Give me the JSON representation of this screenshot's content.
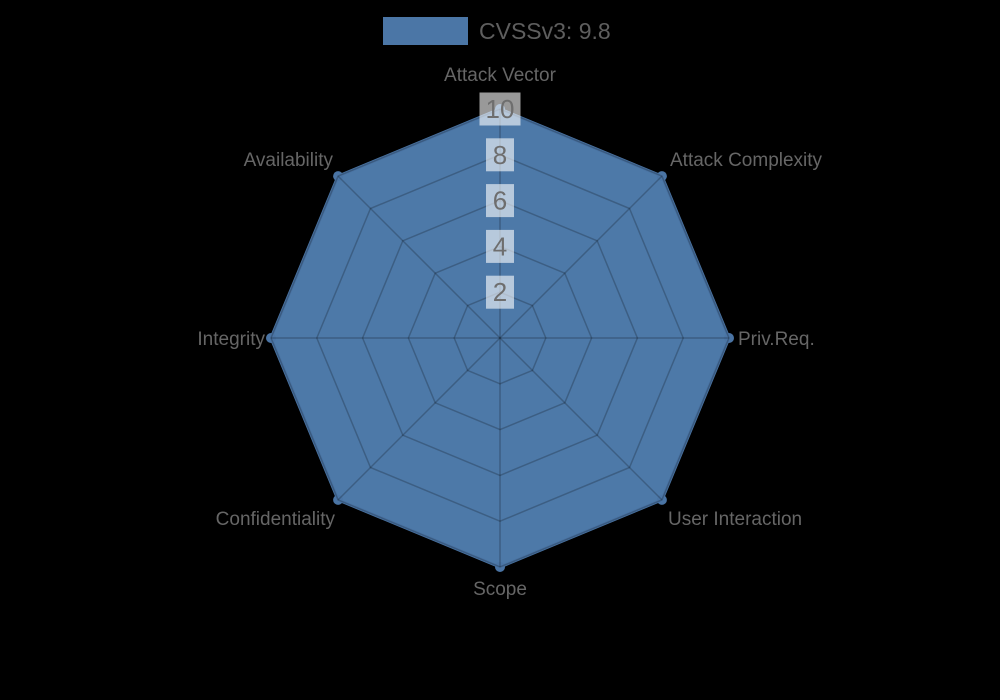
{
  "legend": {
    "label": "CVSSv3: 9.8",
    "swatch_color": "#4b76a6"
  },
  "chart_data": {
    "type": "radar",
    "categories": [
      "Attack Vector",
      "Attack Complexity",
      "Priv.Req.",
      "User Interaction",
      "Scope",
      "Confidentiality",
      "Integrity",
      "Availability"
    ],
    "series": [
      {
        "name": "CVSSv3: 9.8",
        "values": [
          10,
          10,
          10,
          10,
          10,
          10,
          10,
          10
        ]
      }
    ],
    "radial_axis": {
      "min": 0,
      "max": 10,
      "ticks": [
        2,
        4,
        6,
        8,
        10
      ]
    },
    "grid": true,
    "legend_position": "top",
    "colors": {
      "fill": "#4d79a8",
      "border": "#4a74a4",
      "point": "#4a74a4",
      "grid_line": "rgba(0,0,0,0.22)",
      "axis_label": "#666666",
      "tick_text": "#6e6e6e",
      "tick_box": "rgba(255,255,255,0.6)",
      "background": "#000000"
    }
  }
}
